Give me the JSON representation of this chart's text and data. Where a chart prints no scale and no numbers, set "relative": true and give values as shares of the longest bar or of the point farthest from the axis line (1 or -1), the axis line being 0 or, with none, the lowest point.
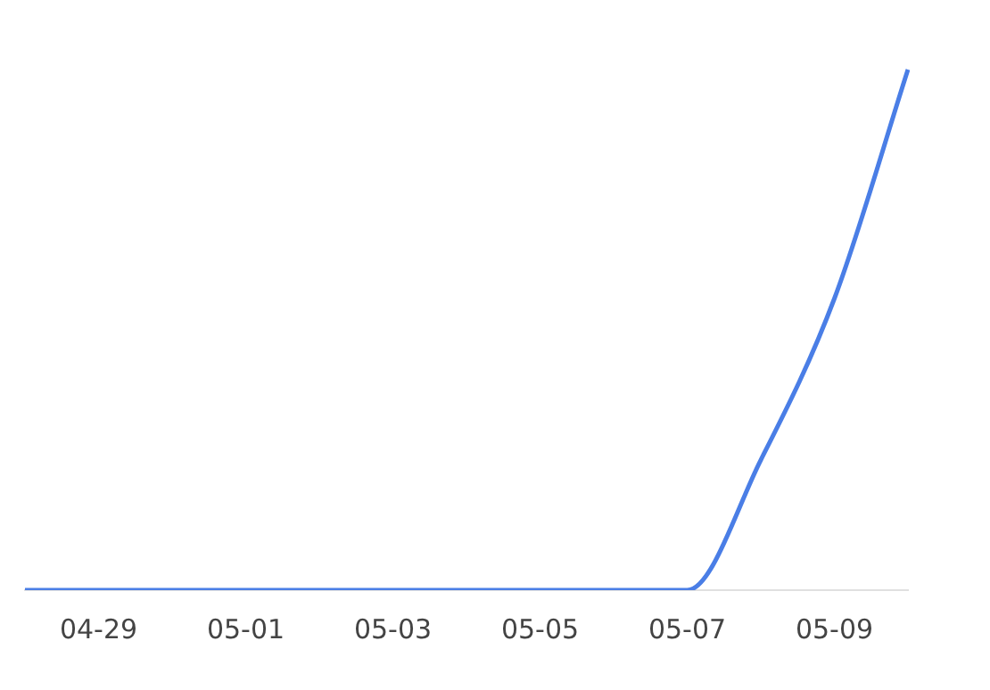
{
  "chart_data": {
    "type": "line",
    "relative": true,
    "categories": [
      null,
      "04-29",
      null,
      "05-01",
      null,
      "05-03",
      null,
      "05-05",
      null,
      "05-07",
      null,
      "05-09",
      null
    ],
    "series": [
      {
        "color": "#4a7ee6",
        "values": [
          0,
          0,
          0,
          0,
          0,
          0,
          0,
          0,
          0,
          0,
          0.25,
          0.56,
          1
        ]
      }
    ],
    "legend": false,
    "marker": "none",
    "line_style": "solid"
  }
}
